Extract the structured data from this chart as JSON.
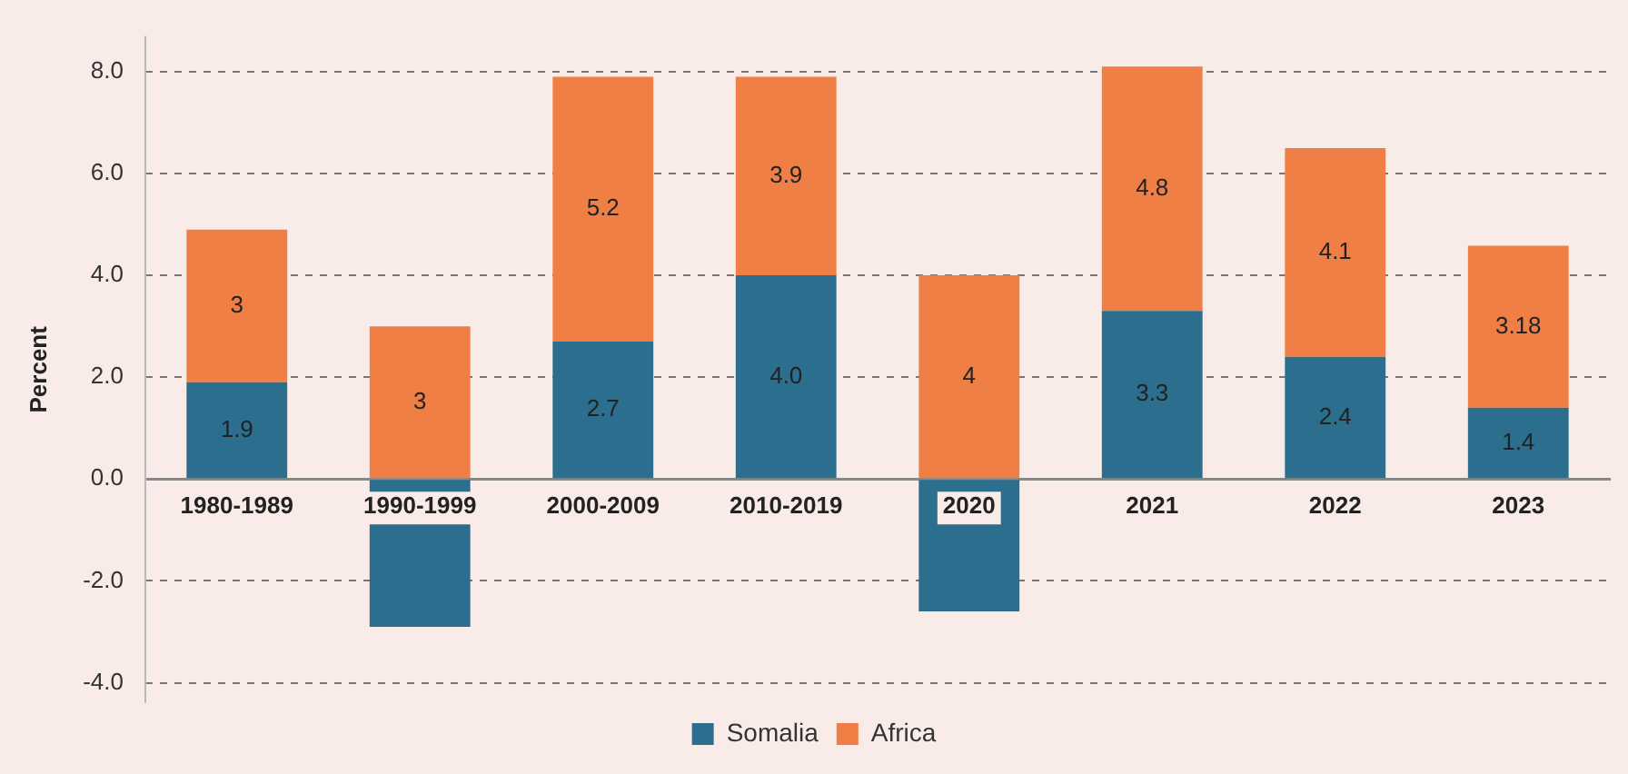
{
  "chart_data": {
    "type": "bar",
    "stacked": true,
    "ylabel": "Percent",
    "categories": [
      "1980-1989",
      "1990-1999",
      "2000-2009",
      "2010-2019",
      "2020",
      "2021",
      "2022",
      "2023"
    ],
    "series": [
      {
        "name": "Somalia",
        "color": "#2c6e8e",
        "values": [
          1.9,
          -2.9,
          2.7,
          4.0,
          -2.6,
          3.3,
          2.4,
          1.4
        ],
        "value_labels": [
          "1.9",
          null,
          "2.7",
          "4.0",
          null,
          "3.3",
          "2.4",
          "1.4"
        ]
      },
      {
        "name": "Africa",
        "color": "#f07f45",
        "values": [
          3,
          3,
          5.2,
          3.9,
          4,
          4.8,
          4.1,
          3.18
        ],
        "value_labels": [
          "3",
          "3",
          "5.2",
          "3.9",
          "4",
          "4.8",
          "4.1",
          "3.18"
        ]
      }
    ],
    "ylim": [
      -4.4,
      8.7
    ],
    "yticks": [
      {
        "value": -4,
        "label": "-4.0"
      },
      {
        "value": -2,
        "label": "-2.0"
      },
      {
        "value": 0,
        "label": "0.0"
      },
      {
        "value": 2,
        "label": "2.0"
      },
      {
        "value": 4,
        "label": "4.0"
      },
      {
        "value": 6,
        "label": "6.0"
      },
      {
        "value": 8,
        "label": "8.0"
      }
    ],
    "grid": "y",
    "legend": "bottom"
  }
}
